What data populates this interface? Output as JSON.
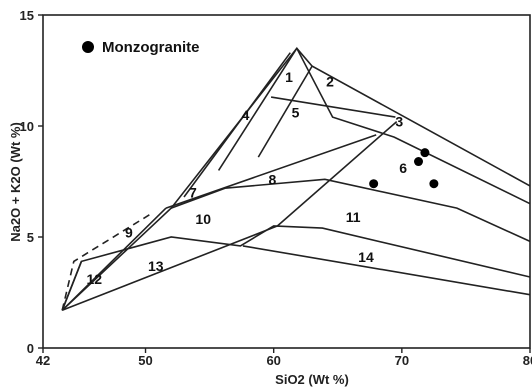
{
  "chart_data": {
    "type": "scatter",
    "title": "",
    "xlabel": "SiO2 (Wt %)",
    "ylabel": "Na2O + K2O (Wt %)",
    "xlim": [
      42,
      80
    ],
    "ylim": [
      0,
      15
    ],
    "x_ticks": [
      "42",
      "50",
      "60",
      "70",
      "80"
    ],
    "y_ticks": [
      "0",
      "5",
      "10",
      "15"
    ],
    "grid": false,
    "legend": {
      "position": "top-left",
      "entries": [
        "Monzogranite"
      ]
    },
    "series": [
      {
        "name": "Monzogranite",
        "color": "#000000",
        "marker": "filled-circle",
        "points": [
          {
            "x": 67.8,
            "y": 7.4
          },
          {
            "x": 71.3,
            "y": 8.4
          },
          {
            "x": 71.8,
            "y": 8.8
          },
          {
            "x": 72.5,
            "y": 7.4
          }
        ]
      }
    ],
    "field_labels": [
      {
        "text": "1",
        "x": 61.2,
        "y": 12.2
      },
      {
        "text": "2",
        "x": 64.4,
        "y": 12.0
      },
      {
        "text": "3",
        "x": 69.8,
        "y": 10.2
      },
      {
        "text": "4",
        "x": 57.8,
        "y": 10.5
      },
      {
        "text": "5",
        "x": 61.7,
        "y": 10.6
      },
      {
        "text": "6",
        "x": 70.1,
        "y": 8.1
      },
      {
        "text": "7",
        "x": 53.7,
        "y": 7.0
      },
      {
        "text": "8",
        "x": 59.9,
        "y": 7.6
      },
      {
        "text": "9",
        "x": 48.7,
        "y": 5.2
      },
      {
        "text": "10",
        "x": 54.5,
        "y": 5.8
      },
      {
        "text": "11",
        "x": 66.2,
        "y": 5.9
      },
      {
        "text": "12",
        "x": 46.0,
        "y": 3.1
      },
      {
        "text": "13",
        "x": 50.8,
        "y": 3.7
      },
      {
        "text": "14",
        "x": 67.2,
        "y": 4.1
      }
    ],
    "boundaries": [
      {
        "style": "solid",
        "points": [
          [
            43.5,
            1.7
          ],
          [
            52,
            6.3
          ],
          [
            61.8,
            13.5
          ],
          [
            64.6,
            10.4
          ],
          [
            69.4,
            9.5
          ],
          [
            80,
            6.5
          ]
        ]
      },
      {
        "style": "solid",
        "points": [
          [
            61.8,
            13.5
          ],
          [
            63,
            12.7
          ],
          [
            80,
            7.3
          ]
        ]
      },
      {
        "style": "solid",
        "points": [
          [
            59.8,
            11.3
          ],
          [
            69.5,
            10.4
          ]
        ]
      },
      {
        "style": "solid",
        "points": [
          [
            55.4,
            8
          ]
        ],
        "note": "unused"
      },
      {
        "style": "solid",
        "points": [
          [
            55.7,
            8.0
          ],
          [
            61.8,
            13.5
          ]
        ]
      },
      {
        "style": "solid",
        "points": [
          [
            53,
            6.8
          ],
          [
            61.3,
            13.3
          ]
        ]
      },
      {
        "style": "solid",
        "points": [
          [
            58.8,
            8.6
          ],
          [
            63,
            12.7
          ]
        ]
      },
      {
        "style": "solid",
        "points": [
          [
            51.6,
            6.3
          ],
          [
            68,
            9.6
          ]
        ]
      },
      {
        "style": "solid",
        "points": [
          [
            56.2,
            7.2
          ],
          [
            64,
            7.6
          ],
          [
            74.3,
            6.3
          ],
          [
            80,
            4.8
          ]
        ]
      },
      {
        "style": "solid",
        "points": [
          [
            60.3,
            5.5
          ],
          [
            69.6,
            10.2
          ]
        ]
      },
      {
        "style": "solid",
        "points": [
          [
            43.5,
            1.7
          ],
          [
            45,
            3.9
          ],
          [
            52,
            5.0
          ],
          [
            57.4,
            4.6
          ],
          [
            60,
            5.5
          ],
          [
            63.8,
            5.4
          ],
          [
            80,
            3.2
          ]
        ]
      },
      {
        "style": "solid",
        "points": [
          [
            57.6,
            4.6
          ],
          [
            80,
            2.4
          ]
        ]
      },
      {
        "style": "solid",
        "points": [
          [
            52,
            6.3
          ],
          [
            56.2,
            7.2
          ]
        ]
      },
      {
        "style": "solid",
        "points": [
          [
            45,
            3.9
          ],
          [
            43.5,
            1.7
          ]
        ]
      },
      {
        "style": "solid",
        "points": [
          [
            43.5,
            1.7
          ],
          [
            60.3,
            5.5
          ]
        ]
      },
      {
        "style": "solid",
        "points": [
          [
            51.6,
            6.3
          ],
          [
            43.5,
            1.7
          ]
        ]
      },
      {
        "style": "dashed",
        "points": [
          [
            43.5,
            1.7
          ],
          [
            44.4,
            3.9
          ],
          [
            50.3,
            6.0
          ]
        ]
      }
    ]
  }
}
